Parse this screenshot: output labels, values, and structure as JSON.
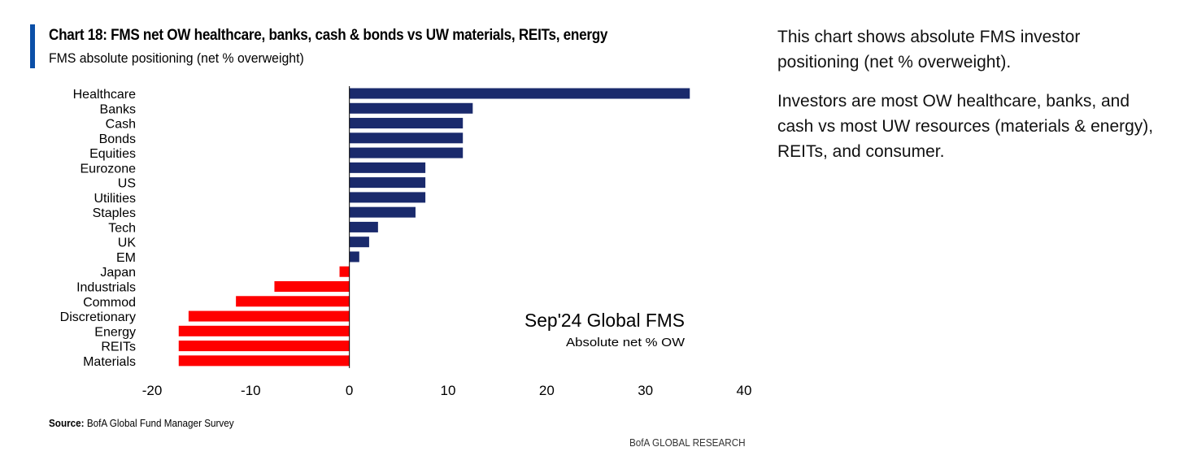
{
  "title": "Chart 18: FMS net OW healthcare, banks, cash & bonds vs UW materials, REITs, energy",
  "subtitle": "FMS absolute positioning (net % overweight)",
  "annotation": {
    "line1": "Sep'24 Global FMS",
    "line2": "Absolute net % OW"
  },
  "source": {
    "label": "Source:",
    "text": "BofA Global Fund Manager Survey"
  },
  "brand": "BofA GLOBAL RESEARCH",
  "side_note": {
    "paragraph1": "This chart shows absolute FMS investor positioning (net % overweight).",
    "paragraph2": "Investors are most OW healthcare, banks, and cash vs most UW resources (materials & energy), REITs, and consumer."
  },
  "colors": {
    "positive": "#1a2a6c",
    "negative": "#ff0000",
    "accent": "#0b4fa7"
  },
  "chart_data": {
    "type": "bar",
    "orientation": "horizontal",
    "categories": [
      "Healthcare",
      "Banks",
      "Cash",
      "Bonds",
      "Equities",
      "Eurozone",
      "US",
      "Utilities",
      "Staples",
      "Tech",
      "UK",
      "EM",
      "Japan",
      "Industrials",
      "Commod",
      "Discretionary",
      "Energy",
      "REITs",
      "Materials"
    ],
    "values": [
      34.5,
      12.5,
      11.5,
      11.5,
      11.5,
      7.7,
      7.7,
      7.7,
      6.7,
      2.9,
      2.0,
      1.0,
      -1.0,
      -7.6,
      -11.5,
      -16.3,
      -17.3,
      -17.3,
      -17.3
    ],
    "xlim": [
      -20,
      40
    ],
    "xticks": [
      -20,
      -10,
      0,
      10,
      20,
      30,
      40
    ],
    "grid": false,
    "legend": "none"
  }
}
